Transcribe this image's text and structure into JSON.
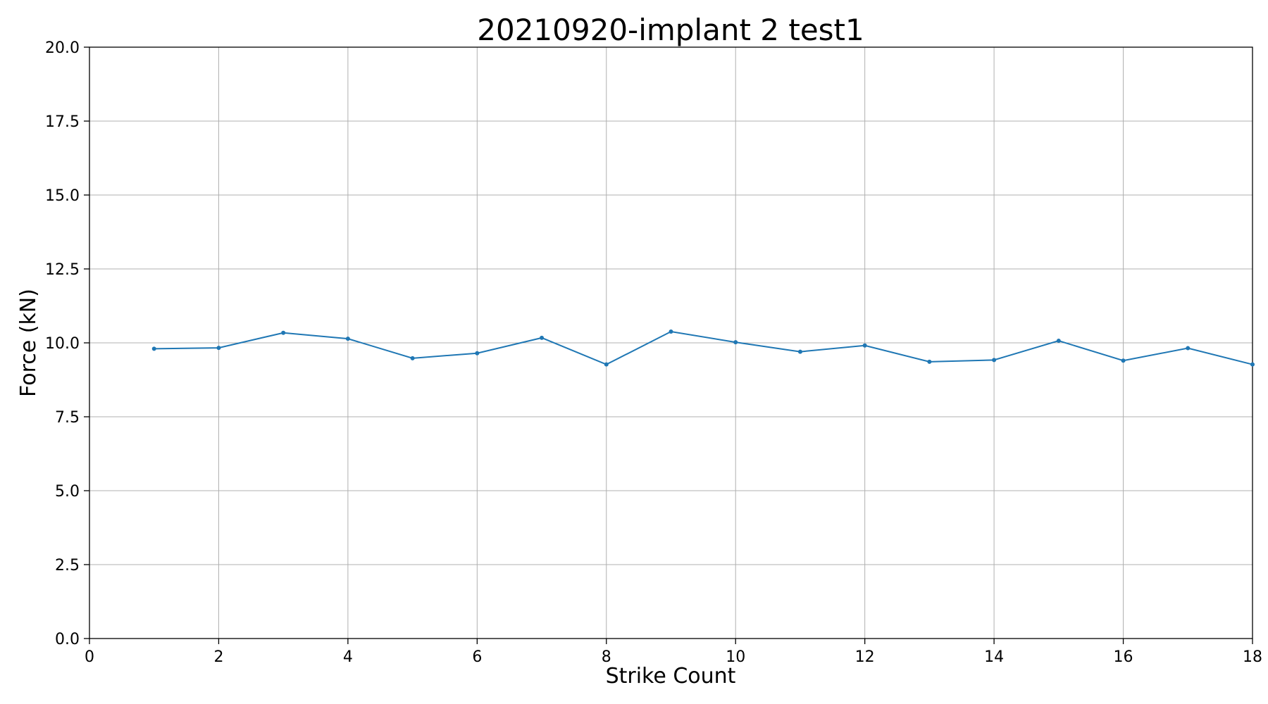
{
  "chart_data": {
    "type": "line",
    "title": "20210920-implant 2 test1",
    "xlabel": "Strike Count",
    "ylabel": "Force (kN)",
    "xlim": [
      0,
      18
    ],
    "ylim": [
      0,
      20
    ],
    "xticks": [
      0,
      2,
      4,
      6,
      8,
      10,
      12,
      14,
      16,
      18
    ],
    "xtick_labels": [
      "0",
      "2",
      "4",
      "6",
      "8",
      "10",
      "12",
      "14",
      "16",
      "18"
    ],
    "yticks": [
      0,
      2.5,
      5,
      7.5,
      10,
      12.5,
      15,
      17.5,
      20
    ],
    "ytick_labels": [
      "0.0",
      "2.5",
      "5.0",
      "7.5",
      "10.0",
      "12.5",
      "15.0",
      "17.5",
      "20.0"
    ],
    "grid": true,
    "series": [
      {
        "color": "#1f77b4",
        "marker": "dot",
        "x": [
          1,
          2,
          3,
          4,
          5,
          6,
          7,
          8,
          9,
          10,
          11,
          12,
          13,
          14,
          15,
          16,
          17,
          18
        ],
        "y": [
          9.8,
          9.83,
          10.34,
          10.14,
          9.48,
          9.65,
          10.17,
          9.27,
          10.38,
          10.02,
          9.7,
          9.91,
          9.36,
          9.42,
          10.07,
          9.4,
          9.82,
          9.27
        ]
      }
    ]
  }
}
